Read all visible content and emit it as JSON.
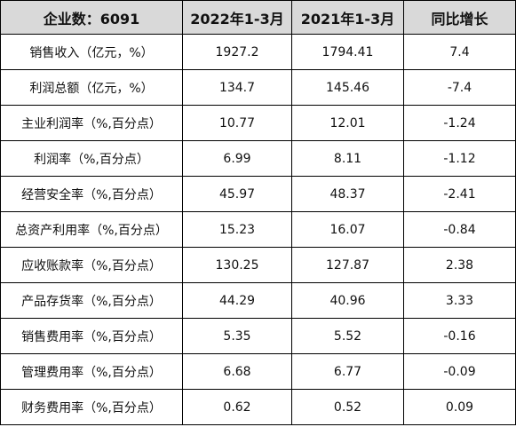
{
  "table": {
    "headers": [
      "企业数：6091",
      "2022年1-3月",
      "2021年1-3月",
      "同比增长"
    ],
    "rows": [
      [
        "销售收入（亿元，%）",
        "1927.2",
        "1794.41",
        "7.4"
      ],
      [
        "利润总额（亿元，%）",
        "134.7",
        "145.46",
        "-7.4"
      ],
      [
        "主业利润率（%,百分点）",
        "10.77",
        "12.01",
        "-1.24"
      ],
      [
        "利润率（%,百分点）",
        "6.99",
        "8.11",
        "-1.12"
      ],
      [
        "经营安全率（%,百分点）",
        "45.97",
        "48.37",
        "-2.41"
      ],
      [
        "总资产利用率（%,百分点）",
        "15.23",
        "16.07",
        "-0.84"
      ],
      [
        "应收账款率（%,百分点）",
        "130.25",
        "127.87",
        "2.38"
      ],
      [
        "产品存货率（%,百分点）",
        "44.29",
        "40.96",
        "3.33"
      ],
      [
        "销售费用率（%,百分点）",
        "5.35",
        "5.52",
        "-0.16"
      ],
      [
        "管理费用率（%,百分点）",
        "6.68",
        "6.77",
        "-0.09"
      ],
      [
        "财务费用率（%,百分点）",
        "0.62",
        "0.52",
        "0.09"
      ]
    ]
  },
  "colors": {
    "header_bg": "#d9d9d9",
    "border": "#000000",
    "text": "#111111"
  }
}
